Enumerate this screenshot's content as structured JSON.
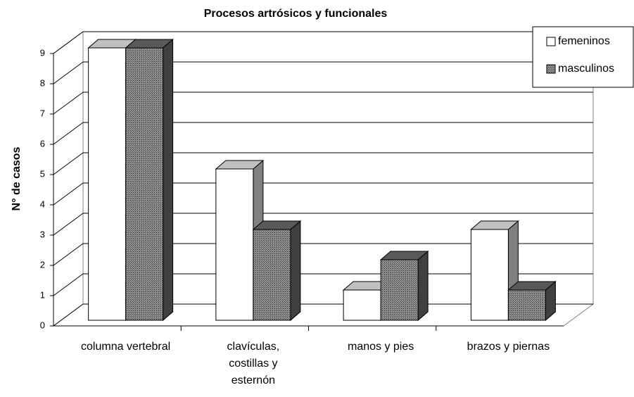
{
  "chart_data": {
    "type": "bar3d",
    "title": "Procesos artrósicos y funcionales",
    "y_label": "N° de casos",
    "categories": [
      "columna vertebral",
      "clavículas, costillas y esternón",
      "manos y pies",
      "brazos y piernas"
    ],
    "series": [
      {
        "name": "femeninos",
        "color": "#ffffff",
        "values": [
          9,
          5,
          1,
          3
        ]
      },
      {
        "name": "masculinos",
        "color": "#808080",
        "values": [
          9,
          3,
          2,
          1
        ]
      }
    ],
    "ylim": [
      0,
      9
    ],
    "yticks": [
      0,
      1,
      2,
      3,
      4,
      5,
      6,
      7,
      8,
      9
    ],
    "grid": true,
    "legend": "top-right"
  }
}
